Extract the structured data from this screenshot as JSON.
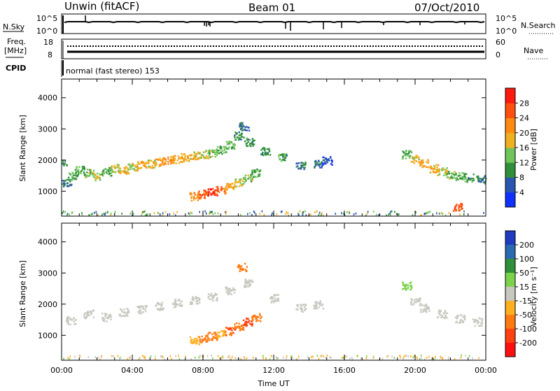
{
  "header": {
    "station": "Unwin (fitACF)",
    "beam": "Beam 01",
    "date": "07/Oct/2010"
  },
  "top_strip": {
    "left_label": "N.Sky",
    "left_ticks": [
      "10^5",
      "10^0"
    ],
    "right_label": "N.Search",
    "right_ticks": [
      "10^5",
      "10^0"
    ]
  },
  "freq_strip": {
    "left_label_1": "Freq.",
    "left_label_2": "[MHz]",
    "left_ticks": [
      "18",
      "8"
    ],
    "right_label": "Nave",
    "right_ticks": [
      "60",
      "0"
    ]
  },
  "cpid": {
    "label": "CPID",
    "text": "normal (fast stereo) 153"
  },
  "chart_data": [
    {
      "type": "heatmap",
      "title": "",
      "xlabel": "",
      "ylabel": "Slant Range [km]",
      "xlim": [
        0,
        24
      ],
      "ylim": [
        200,
        4600
      ],
      "y_ticks": [
        "1000",
        "2000",
        "3000",
        "4000"
      ],
      "colorbar": {
        "label": "Power [dB]",
        "ticks": [
          "4",
          "8",
          "12",
          "16",
          "20",
          "24",
          "28"
        ],
        "colors": [
          "#1030ff",
          "#2a55b0",
          "#2f8f3a",
          "#6fc45a",
          "#f0b020",
          "#ff8a10",
          "#ff5010",
          "#ff1a10"
        ]
      },
      "series": [
        {
          "points": [
            [
              0.0,
              1950,
              10
            ],
            [
              0.3,
              1300,
              8
            ],
            [
              0.6,
              1500,
              12
            ],
            [
              1.0,
              1700,
              12
            ],
            [
              1.5,
              1600,
              14
            ],
            [
              2.0,
              1500,
              16
            ],
            [
              2.5,
              1650,
              12
            ],
            [
              3.0,
              1750,
              16
            ],
            [
              3.5,
              1700,
              18
            ],
            [
              4.0,
              1800,
              16
            ],
            [
              4.5,
              1850,
              20
            ],
            [
              5.0,
              1900,
              18
            ],
            [
              5.5,
              1950,
              20
            ],
            [
              6.0,
              2000,
              22
            ],
            [
              6.5,
              2050,
              20
            ],
            [
              7.0,
              2100,
              20
            ],
            [
              7.5,
              2150,
              18
            ],
            [
              8.0,
              2200,
              16
            ],
            [
              8.5,
              2250,
              14
            ],
            [
              9.0,
              2350,
              12
            ],
            [
              9.5,
              2500,
              12
            ],
            [
              10.0,
              2800,
              10
            ],
            [
              10.3,
              3100,
              8
            ],
            [
              10.6,
              2600,
              10
            ],
            [
              7.5,
              850,
              22
            ],
            [
              8.0,
              920,
              26
            ],
            [
              8.5,
              980,
              28
            ],
            [
              9.0,
              1050,
              24
            ],
            [
              9.5,
              1150,
              20
            ],
            [
              10.0,
              1300,
              16
            ],
            [
              10.5,
              1450,
              14
            ],
            [
              11.0,
              1600,
              12
            ],
            [
              11.5,
              2300,
              10
            ],
            [
              12.5,
              2100,
              10
            ],
            [
              13.5,
              1850,
              8
            ],
            [
              14.5,
              1900,
              8
            ],
            [
              15.0,
              2000,
              6
            ],
            [
              19.5,
              2200,
              12
            ],
            [
              20.0,
              2050,
              18
            ],
            [
              20.5,
              1900,
              20
            ],
            [
              21.0,
              1750,
              18
            ],
            [
              21.5,
              1650,
              16
            ],
            [
              22.0,
              1550,
              14
            ],
            [
              22.5,
              1500,
              12
            ],
            [
              23.0,
              1450,
              10
            ],
            [
              23.7,
              1400,
              8
            ],
            [
              22.4,
              500,
              26
            ]
          ]
        }
      ]
    },
    {
      "type": "heatmap",
      "title": "",
      "xlabel": "Time UT",
      "ylabel": "Slant Range [km]",
      "xlim": [
        0,
        24
      ],
      "ylim": [
        200,
        4600
      ],
      "x_ticks": [
        "00:00",
        "04:00",
        "08:00",
        "12:00",
        "16:00",
        "20:00",
        "00:00"
      ],
      "y_ticks": [
        "1000",
        "2000",
        "3000",
        "4000"
      ],
      "colorbar": {
        "label": "Velocity [m s⁻¹]",
        "ticks": [
          "200",
          "100",
          "50",
          "15",
          "-15",
          "-50",
          "-100",
          "-200"
        ],
        "colors": [
          "#1f3cc0",
          "#2a6ab0",
          "#2f8f3a",
          "#7cd24a",
          "#c8c8c0",
          "#ffb020",
          "#ff7a10",
          "#ff4010",
          "#ff1010"
        ]
      },
      "series": [
        {
          "points": [
            [
              0.5,
              1500,
              0
            ],
            [
              1.5,
              1700,
              0
            ],
            [
              2.5,
              1600,
              0
            ],
            [
              3.5,
              1750,
              0
            ],
            [
              4.5,
              1850,
              0
            ],
            [
              5.5,
              1950,
              0
            ],
            [
              6.5,
              2050,
              0
            ],
            [
              7.5,
              2150,
              0
            ],
            [
              8.5,
              2250,
              0
            ],
            [
              9.5,
              2450,
              0
            ],
            [
              10.2,
              3200,
              -60
            ],
            [
              10.5,
              2700,
              0
            ],
            [
              12.0,
              2200,
              0
            ],
            [
              13.5,
              1900,
              0
            ],
            [
              14.5,
              2000,
              0
            ],
            [
              7.5,
              850,
              -40
            ],
            [
              8.0,
              920,
              -60
            ],
            [
              8.5,
              990,
              -80
            ],
            [
              9.0,
              1050,
              -40
            ],
            [
              9.5,
              1150,
              -100
            ],
            [
              10.0,
              1300,
              -60
            ],
            [
              10.5,
              1450,
              -120
            ],
            [
              11.0,
              1600,
              -80
            ],
            [
              20.0,
              2100,
              0
            ],
            [
              20.5,
              1900,
              0
            ],
            [
              21.5,
              1700,
              0
            ],
            [
              22.5,
              1550,
              0
            ],
            [
              23.5,
              1450,
              0
            ],
            [
              19.5,
              2600,
              20
            ]
          ]
        }
      ]
    }
  ]
}
